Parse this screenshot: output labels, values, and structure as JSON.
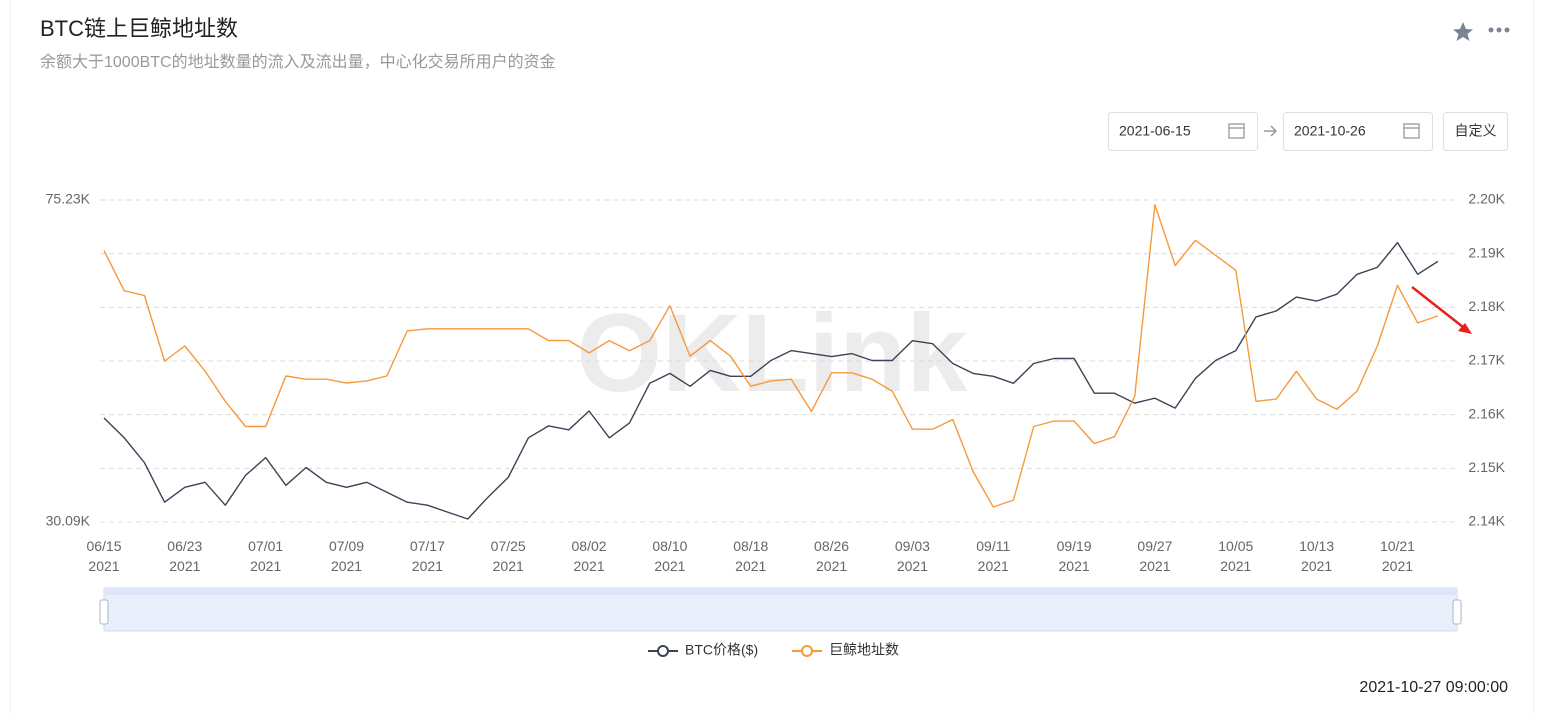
{
  "header": {
    "title": "BTC链上巨鲸地址数",
    "subtitle": "余额大于1000BTC的地址数量的流入及流出量，中心化交易所用户的资金"
  },
  "controls": {
    "date_range": [
      "2021-06-15",
      "2021-10-26"
    ],
    "custom_button": "自定义"
  },
  "watermark": "OKLink",
  "timestamp": "2021-10-27 09:00:00",
  "chart_data": {
    "type": "line",
    "x": [
      "2021-06-15",
      "2021-06-17",
      "2021-06-19",
      "2021-06-21",
      "2021-06-23",
      "2021-06-25",
      "2021-06-27",
      "2021-06-29",
      "2021-07-01",
      "2021-07-03",
      "2021-07-05",
      "2021-07-07",
      "2021-07-09",
      "2021-07-11",
      "2021-07-13",
      "2021-07-15",
      "2021-07-17",
      "2021-07-19",
      "2021-07-21",
      "2021-07-23",
      "2021-07-25",
      "2021-07-27",
      "2021-07-29",
      "2021-07-31",
      "2021-08-02",
      "2021-08-04",
      "2021-08-06",
      "2021-08-08",
      "2021-08-10",
      "2021-08-12",
      "2021-08-14",
      "2021-08-16",
      "2021-08-18",
      "2021-08-20",
      "2021-08-22",
      "2021-08-24",
      "2021-08-26",
      "2021-08-28",
      "2021-08-30",
      "2021-09-01",
      "2021-09-03",
      "2021-09-05",
      "2021-09-07",
      "2021-09-09",
      "2021-09-11",
      "2021-09-13",
      "2021-09-15",
      "2021-09-17",
      "2021-09-19",
      "2021-09-21",
      "2021-09-23",
      "2021-09-25",
      "2021-09-27",
      "2021-09-29",
      "2021-10-01",
      "2021-10-03",
      "2021-10-05",
      "2021-10-07",
      "2021-10-09",
      "2021-10-11",
      "2021-10-13",
      "2021-10-15",
      "2021-10-17",
      "2021-10-19",
      "2021-10-21",
      "2021-10-23",
      "2021-10-25"
    ],
    "series": [
      {
        "name": "BTC价格($)",
        "color": "#3d4356",
        "values": [
          44670,
          41900,
          38420,
          32870,
          34950,
          35650,
          32450,
          36620,
          39120,
          35230,
          37730,
          35650,
          34950,
          35650,
          34260,
          32870,
          32450,
          31480,
          30510,
          33560,
          36340,
          41900,
          43560,
          43010,
          45650,
          41900,
          43980,
          49530,
          50920,
          49120,
          51340,
          50510,
          50510,
          52730,
          54120,
          53700,
          53280,
          53700,
          52730,
          52730,
          55510,
          55090,
          52310,
          50920,
          50510,
          49530,
          52310,
          53010,
          53010,
          48150,
          48150,
          46760,
          47450,
          46060,
          50230,
          52730,
          54120,
          58840,
          59670,
          61620,
          61060,
          62030,
          64810,
          65780,
          69260,
          64810,
          66620
        ]
      },
      {
        "name": "巨鲸地址数",
        "color": "#f59a3c",
        "axis": "y2",
        "values": [
          2190.6,
          2183.1,
          2182.2,
          2170,
          2172.8,
          2168.1,
          2162.5,
          2157.8,
          2157.8,
          2167.2,
          2166.6,
          2166.6,
          2165.9,
          2166.3,
          2167.2,
          2175.6,
          2176,
          2176,
          2176,
          2176,
          2176,
          2176,
          2173.8,
          2173.8,
          2171.5,
          2173.8,
          2171.9,
          2173.8,
          2180.3,
          2170.9,
          2173.8,
          2170.9,
          2165.3,
          2166.3,
          2166.6,
          2160.6,
          2167.8,
          2167.8,
          2166.6,
          2164.4,
          2157.3,
          2157.3,
          2159.1,
          2149.4,
          2142.8,
          2144.1,
          2157.8,
          2158.8,
          2158.8,
          2154.6,
          2155.9,
          2163.4,
          2199.1,
          2187.8,
          2192.5,
          2189.7,
          2186.9,
          2162.5,
          2162.9,
          2168.1,
          2162.9,
          2161,
          2164.4,
          2172.8,
          2184.1,
          2177.1,
          2178.4
        ]
      }
    ],
    "xlim": [
      "2021-06-15",
      "2021-10-26"
    ],
    "xticks": [
      {
        "value": "2021-06-15",
        "label": "06/15\n2021"
      },
      {
        "value": "2021-06-23",
        "label": "06/23\n2021"
      },
      {
        "value": "2021-07-01",
        "label": "07/01\n2021"
      },
      {
        "value": "2021-07-09",
        "label": "07/09\n2021"
      },
      {
        "value": "2021-07-17",
        "label": "07/17\n2021"
      },
      {
        "value": "2021-07-25",
        "label": "07/25\n2021"
      },
      {
        "value": "2021-08-02",
        "label": "08/02\n2021"
      },
      {
        "value": "2021-08-10",
        "label": "08/10\n2021"
      },
      {
        "value": "2021-08-18",
        "label": "08/18\n2021"
      },
      {
        "value": "2021-08-26",
        "label": "08/26\n2021"
      },
      {
        "value": "2021-09-03",
        "label": "09/03\n2021"
      },
      {
        "value": "2021-09-11",
        "label": "09/11\n2021"
      },
      {
        "value": "2021-09-19",
        "label": "09/19\n2021"
      },
      {
        "value": "2021-09-27",
        "label": "09/27\n2021"
      },
      {
        "value": "2021-10-05",
        "label": "10/05\n2021"
      },
      {
        "value": "2021-10-13",
        "label": "10/13\n2021"
      },
      {
        "value": "2021-10-21",
        "label": "10/21\n2021"
      }
    ],
    "ylim": [
      30090,
      75230
    ],
    "yticks": [
      {
        "value": 30090,
        "label": "30.09K"
      },
      {
        "value": 75230,
        "label": "75.23K"
      }
    ],
    "y2lim": [
      2140,
      2200
    ],
    "y2ticks": [
      {
        "value": 2140,
        "label": "2.14K"
      },
      {
        "value": 2150,
        "label": "2.15K"
      },
      {
        "value": 2160,
        "label": "2.16K"
      },
      {
        "value": 2170,
        "label": "2.17K"
      },
      {
        "value": 2180,
        "label": "2.18K"
      },
      {
        "value": 2190,
        "label": "2.19K"
      },
      {
        "value": 2200,
        "label": "2.20K"
      }
    ],
    "grid": true,
    "legend": "bottom"
  }
}
